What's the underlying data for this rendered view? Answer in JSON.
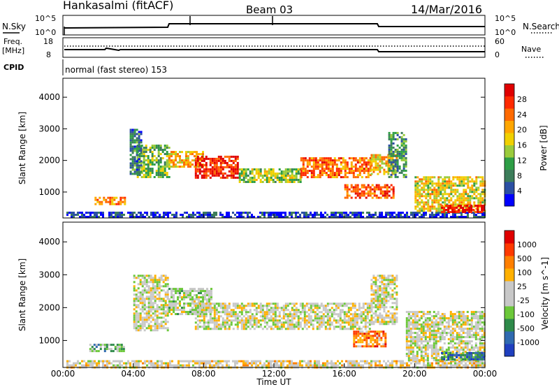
{
  "header": {
    "station": "Hankasalmi (fitACF)",
    "beam": "Beam 03",
    "date": "14/Mar/2016"
  },
  "panels": {
    "nsky_label": "N.Sky",
    "nsearch_label": "N.Search",
    "freq_label_1": "Freq.",
    "freq_label_2": "[MHz]",
    "nave_label": "Nave",
    "cpid_label": "CPID",
    "cpid_text": "normal (fast stereo) 153",
    "left_ticks_top": [
      "10^5",
      "10^0"
    ],
    "right_ticks_top": [
      "10^5",
      "10^0"
    ],
    "left_ticks_freq": [
      "18",
      "8"
    ],
    "right_ticks_nave": [
      "60",
      "0"
    ]
  },
  "chart_data": [
    {
      "type": "heatmap",
      "name": "power",
      "ylabel": "Slant Range [km]",
      "xlabel": "Time UT",
      "x_ticks": [
        "00:00",
        "04:00",
        "08:00",
        "12:00",
        "16:00",
        "20:00",
        "00:00"
      ],
      "x_range_hours": [
        0,
        24
      ],
      "y_ticks": [
        1000,
        2000,
        3000,
        4000
      ],
      "y_range_km": [
        180,
        4600
      ],
      "colorbar_label": "Power [dB]",
      "colorbar_ticks": [
        "28",
        "24",
        "20",
        "16",
        "12",
        "8",
        "4"
      ],
      "colors": [
        "#0000ff",
        "#2b4fa3",
        "#3c7d5a",
        "#2e9e46",
        "#9acb3c",
        "#f0d000",
        "#ffa600",
        "#ff6a00",
        "#ff2a00",
        "#e00000"
      ],
      "regions": [
        {
          "t0": 0.2,
          "t1": 24.0,
          "r0": 200,
          "r1": 380,
          "level": 0.1
        },
        {
          "t0": 1.8,
          "t1": 3.5,
          "r0": 650,
          "r1": 850,
          "level": 0.7
        },
        {
          "t0": 4.2,
          "t1": 6.0,
          "r0": 1450,
          "r1": 2500,
          "level": 0.4
        },
        {
          "t0": 6.0,
          "t1": 8.0,
          "r0": 1800,
          "r1": 2300,
          "level": 0.6
        },
        {
          "t0": 7.5,
          "t1": 10.0,
          "r0": 1450,
          "r1": 2150,
          "level": 0.9
        },
        {
          "t0": 10.0,
          "t1": 13.5,
          "r0": 1300,
          "r1": 1750,
          "level": 0.45
        },
        {
          "t0": 13.5,
          "t1": 17.5,
          "r0": 1500,
          "r1": 2100,
          "level": 0.75
        },
        {
          "t0": 17.5,
          "t1": 19.0,
          "r0": 1550,
          "r1": 2200,
          "level": 0.6
        },
        {
          "t0": 16.0,
          "t1": 18.8,
          "r0": 800,
          "r1": 1250,
          "level": 0.8
        },
        {
          "t0": 20.0,
          "t1": 24.0,
          "r0": 400,
          "r1": 1500,
          "level": 0.55
        },
        {
          "t0": 21.5,
          "t1": 24.0,
          "r0": 400,
          "r1": 600,
          "level": 0.95
        },
        {
          "t0": 3.8,
          "t1": 4.5,
          "r0": 1600,
          "r1": 3000,
          "level": 0.25
        },
        {
          "t0": 18.5,
          "t1": 19.5,
          "r0": 1500,
          "r1": 2900,
          "level": 0.3
        }
      ]
    },
    {
      "type": "heatmap",
      "name": "velocity",
      "ylabel": "Slant Range [km]",
      "xlabel": "Time UT",
      "x_ticks": [
        "00:00",
        "04:00",
        "08:00",
        "12:00",
        "16:00",
        "20:00",
        "00:00"
      ],
      "x_range_hours": [
        0,
        24
      ],
      "y_ticks": [
        1000,
        2000,
        3000,
        4000
      ],
      "y_range_km": [
        180,
        4600
      ],
      "colorbar_label": "Velocity [m s^-1]",
      "colorbar_ticks": [
        "1000",
        "500",
        "100",
        "25",
        "-25",
        "-100",
        "-500",
        "-1000"
      ],
      "colors": [
        "#1f3fbf",
        "#2f6ab0",
        "#2e8a4a",
        "#6cc83a",
        "#c8c8c8",
        "#c8c8c8",
        "#ffb000",
        "#ff7f00",
        "#ff3a00",
        "#e00000"
      ],
      "regions": [
        {
          "t0": 0.2,
          "t1": 24.0,
          "r0": 200,
          "r1": 400,
          "level": 0.55
        },
        {
          "t0": 1.5,
          "t1": 3.5,
          "r0": 650,
          "r1": 900,
          "level": 0.35
        },
        {
          "t0": 4.0,
          "t1": 6.0,
          "r0": 1300,
          "r1": 3000,
          "level": 0.5
        },
        {
          "t0": 6.0,
          "t1": 8.5,
          "r0": 1800,
          "r1": 2600,
          "level": 0.45
        },
        {
          "t0": 7.5,
          "t1": 17.5,
          "r0": 1350,
          "r1": 2150,
          "level": 0.5
        },
        {
          "t0": 16.5,
          "t1": 18.3,
          "r0": 850,
          "r1": 1300,
          "level": 0.75
        },
        {
          "t0": 17.5,
          "t1": 19.0,
          "r0": 1500,
          "r1": 3000,
          "level": 0.5
        },
        {
          "t0": 19.5,
          "t1": 24.0,
          "r0": 400,
          "r1": 1900,
          "level": 0.5
        },
        {
          "t0": 21.5,
          "t1": 24.0,
          "r0": 400,
          "r1": 650,
          "level": 0.2
        }
      ]
    }
  ]
}
